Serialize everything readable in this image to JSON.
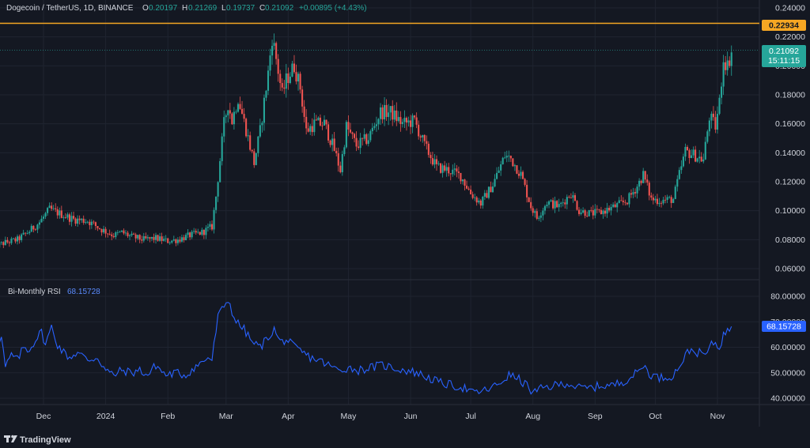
{
  "header": {
    "symbol": "Dogecoin / TetherUS, 1D, BINANCE",
    "o_label": "O",
    "o_value": "0.20197",
    "h_label": "H",
    "h_value": "0.21269",
    "l_label": "L",
    "l_value": "0.19737",
    "c_label": "C",
    "c_value": "0.21092",
    "change": "+0.00895 (+4.43%)"
  },
  "rsi_panel": {
    "title": "Bi-Monthly RSI",
    "value": "68.15728"
  },
  "price_badge": {
    "price": "0.21092",
    "countdown": "15:11:15"
  },
  "level_badge": {
    "value": "0.22934"
  },
  "rsi_badge": {
    "value": "68.15728"
  },
  "footer": {
    "brand": "TradingView"
  },
  "colors": {
    "background": "#141822",
    "up": "#26a69a",
    "down": "#ef5350",
    "level_line": "#f5a623",
    "rsi_line": "#2962ff",
    "grid": "#1f2430",
    "text": "#d1d4dc"
  },
  "chart_data": [
    {
      "type": "candlestick",
      "title": "Dogecoin / TetherUS, 1D, BINANCE",
      "ylim": [
        0.05,
        0.245
      ],
      "y_ticks": [
        "0.24000",
        "0.22000",
        "0.20000",
        "0.18000",
        "0.16000",
        "0.14000",
        "0.12000",
        "0.10000",
        "0.08000",
        "0.06000"
      ],
      "x_labels": [
        "Dec",
        "2024",
        "Feb",
        "Mar",
        "Apr",
        "May",
        "Jun",
        "Jul",
        "Aug",
        "Sep",
        "Oct",
        "Nov"
      ],
      "horizontal_level": 0.22934,
      "last_price": 0.21092,
      "close_path": [
        [
          "2023-11-10",
          0.075
        ],
        [
          "2023-11-16",
          0.078
        ],
        [
          "2023-11-22",
          0.08
        ],
        [
          "2023-11-28",
          0.086
        ],
        [
          "2023-12-03",
          0.092
        ],
        [
          "2023-12-08",
          0.101
        ],
        [
          "2023-12-13",
          0.098
        ],
        [
          "2023-12-20",
          0.094
        ],
        [
          "2023-12-27",
          0.093
        ],
        [
          "2024-01-03",
          0.087
        ],
        [
          "2024-01-09",
          0.083
        ],
        [
          "2024-01-13",
          0.085
        ],
        [
          "2024-01-18",
          0.082
        ],
        [
          "2024-01-24",
          0.08
        ],
        [
          "2024-01-30",
          0.081
        ],
        [
          "2024-02-05",
          0.079
        ],
        [
          "2024-02-10",
          0.08
        ],
        [
          "2024-02-16",
          0.083
        ],
        [
          "2024-02-22",
          0.085
        ],
        [
          "2024-02-27",
          0.089
        ],
        [
          "2024-02-29",
          0.11
        ],
        [
          "2024-03-04",
          0.16
        ],
        [
          "2024-03-06",
          0.174
        ],
        [
          "2024-03-08",
          0.162
        ],
        [
          "2024-03-11",
          0.178
        ],
        [
          "2024-03-15",
          0.156
        ],
        [
          "2024-03-19",
          0.133
        ],
        [
          "2024-03-22",
          0.155
        ],
        [
          "2024-03-26",
          0.195
        ],
        [
          "2024-03-28",
          0.22
        ],
        [
          "2024-03-30",
          0.205
        ],
        [
          "2024-04-02",
          0.18
        ],
        [
          "2024-04-04",
          0.19
        ],
        [
          "2024-04-08",
          0.2
        ],
        [
          "2024-04-11",
          0.185
        ],
        [
          "2024-04-14",
          0.155
        ],
        [
          "2024-04-18",
          0.16
        ],
        [
          "2024-04-23",
          0.16
        ],
        [
          "2024-04-28",
          0.142
        ],
        [
          "2024-05-01",
          0.128
        ],
        [
          "2024-05-04",
          0.158
        ],
        [
          "2024-05-09",
          0.145
        ],
        [
          "2024-05-15",
          0.15
        ],
        [
          "2024-05-21",
          0.168
        ],
        [
          "2024-05-26",
          0.168
        ],
        [
          "2024-06-01",
          0.16
        ],
        [
          "2024-06-07",
          0.162
        ],
        [
          "2024-06-12",
          0.145
        ],
        [
          "2024-06-18",
          0.13
        ],
        [
          "2024-06-24",
          0.128
        ],
        [
          "2024-06-30",
          0.124
        ],
        [
          "2024-07-05",
          0.112
        ],
        [
          "2024-07-10",
          0.105
        ],
        [
          "2024-07-16",
          0.118
        ],
        [
          "2024-07-22",
          0.138
        ],
        [
          "2024-07-25",
          0.136
        ],
        [
          "2024-07-30",
          0.125
        ],
        [
          "2024-08-04",
          0.103
        ],
        [
          "2024-08-07",
          0.095
        ],
        [
          "2024-08-12",
          0.106
        ],
        [
          "2024-08-18",
          0.103
        ],
        [
          "2024-08-24",
          0.112
        ],
        [
          "2024-08-28",
          0.1
        ],
        [
          "2024-09-03",
          0.098
        ],
        [
          "2024-09-08",
          0.099
        ],
        [
          "2024-09-15",
          0.103
        ],
        [
          "2024-09-21",
          0.107
        ],
        [
          "2024-09-26",
          0.117
        ],
        [
          "2024-09-29",
          0.125
        ],
        [
          "2024-10-03",
          0.108
        ],
        [
          "2024-10-08",
          0.107
        ],
        [
          "2024-10-14",
          0.108
        ],
        [
          "2024-10-17",
          0.125
        ],
        [
          "2024-10-20",
          0.141
        ],
        [
          "2024-10-25",
          0.138
        ],
        [
          "2024-10-29",
          0.135
        ],
        [
          "2024-11-01",
          0.165
        ],
        [
          "2024-11-04",
          0.158
        ],
        [
          "2024-11-06",
          0.175
        ],
        [
          "2024-11-08",
          0.205
        ],
        [
          "2024-11-10",
          0.2
        ],
        [
          "2024-11-12",
          0.21
        ]
      ]
    },
    {
      "type": "line",
      "title": "Bi-Monthly RSI",
      "ylim": [
        35,
        83
      ],
      "y_ticks": [
        "80.00000",
        "70.00000",
        "60.00000",
        "50.00000",
        "40.00000"
      ],
      "last_value": 68.15728,
      "series": [
        {
          "name": "Bi-Monthly RSI",
          "points": [
            [
              "2023-11-10",
              62
            ],
            [
              "2023-11-12",
              58
            ],
            [
              "2023-11-14",
              64
            ],
            [
              "2023-11-16",
              52
            ],
            [
              "2023-11-19",
              57
            ],
            [
              "2023-11-22",
              55
            ],
            [
              "2023-11-25",
              60
            ],
            [
              "2023-11-28",
              59
            ],
            [
              "2023-12-01",
              63
            ],
            [
              "2023-12-04",
              66
            ],
            [
              "2023-12-06",
              61
            ],
            [
              "2023-12-09",
              68
            ],
            [
              "2023-12-12",
              61
            ],
            [
              "2023-12-15",
              58
            ],
            [
              "2023-12-18",
              56
            ],
            [
              "2023-12-22",
              58
            ],
            [
              "2023-12-27",
              55
            ],
            [
              "2024-01-01",
              56
            ],
            [
              "2024-01-05",
              51
            ],
            [
              "2024-01-09",
              49
            ],
            [
              "2024-01-13",
              51
            ],
            [
              "2024-01-18",
              50
            ],
            [
              "2024-01-22",
              51
            ],
            [
              "2024-01-26",
              49
            ],
            [
              "2024-01-30",
              53
            ],
            [
              "2024-02-04",
              49
            ],
            [
              "2024-02-09",
              50
            ],
            [
              "2024-02-14",
              49
            ],
            [
              "2024-02-18",
              52
            ],
            [
              "2024-02-22",
              54
            ],
            [
              "2024-02-25",
              56
            ],
            [
              "2024-02-27",
              55
            ],
            [
              "2024-03-01",
              72
            ],
            [
              "2024-03-04",
              76
            ],
            [
              "2024-03-06",
              79
            ],
            [
              "2024-03-08",
              74
            ],
            [
              "2024-03-10",
              70
            ],
            [
              "2024-03-14",
              67
            ],
            [
              "2024-03-18",
              62
            ],
            [
              "2024-03-22",
              60
            ],
            [
              "2024-03-26",
              64
            ],
            [
              "2024-03-29",
              67
            ],
            [
              "2024-04-01",
              62
            ],
            [
              "2024-04-04",
              63
            ],
            [
              "2024-04-08",
              60
            ],
            [
              "2024-04-12",
              58
            ],
            [
              "2024-04-16",
              56
            ],
            [
              "2024-04-20",
              55
            ],
            [
              "2024-04-25",
              53
            ],
            [
              "2024-04-30",
              51
            ],
            [
              "2024-05-05",
              52
            ],
            [
              "2024-05-10",
              51
            ],
            [
              "2024-05-16",
              52
            ],
            [
              "2024-05-22",
              53
            ],
            [
              "2024-05-27",
              52
            ],
            [
              "2024-06-02",
              51
            ],
            [
              "2024-06-08",
              50
            ],
            [
              "2024-06-14",
              48
            ],
            [
              "2024-06-20",
              46
            ],
            [
              "2024-06-26",
              45
            ],
            [
              "2024-07-02",
              44
            ],
            [
              "2024-07-06",
              42
            ],
            [
              "2024-07-12",
              43
            ],
            [
              "2024-07-18",
              45
            ],
            [
              "2024-07-24",
              49
            ],
            [
              "2024-07-28",
              48
            ],
            [
              "2024-08-02",
              45
            ],
            [
              "2024-08-05",
              42
            ],
            [
              "2024-08-10",
              44
            ],
            [
              "2024-08-16",
              45
            ],
            [
              "2024-08-22",
              46
            ],
            [
              "2024-08-28",
              44
            ],
            [
              "2024-09-03",
              44
            ],
            [
              "2024-09-08",
              45
            ],
            [
              "2024-09-14",
              45
            ],
            [
              "2024-09-20",
              47
            ],
            [
              "2024-09-26",
              50
            ],
            [
              "2024-09-29",
              53
            ],
            [
              "2024-10-03",
              49
            ],
            [
              "2024-10-08",
              48
            ],
            [
              "2024-10-14",
              49
            ],
            [
              "2024-10-18",
              54
            ],
            [
              "2024-10-22",
              59
            ],
            [
              "2024-10-26",
              58
            ],
            [
              "2024-10-30",
              57
            ],
            [
              "2024-11-03",
              62
            ],
            [
              "2024-11-06",
              60
            ],
            [
              "2024-11-08",
              65
            ],
            [
              "2024-11-10",
              66
            ],
            [
              "2024-11-12",
              68.16
            ]
          ]
        }
      ]
    }
  ]
}
